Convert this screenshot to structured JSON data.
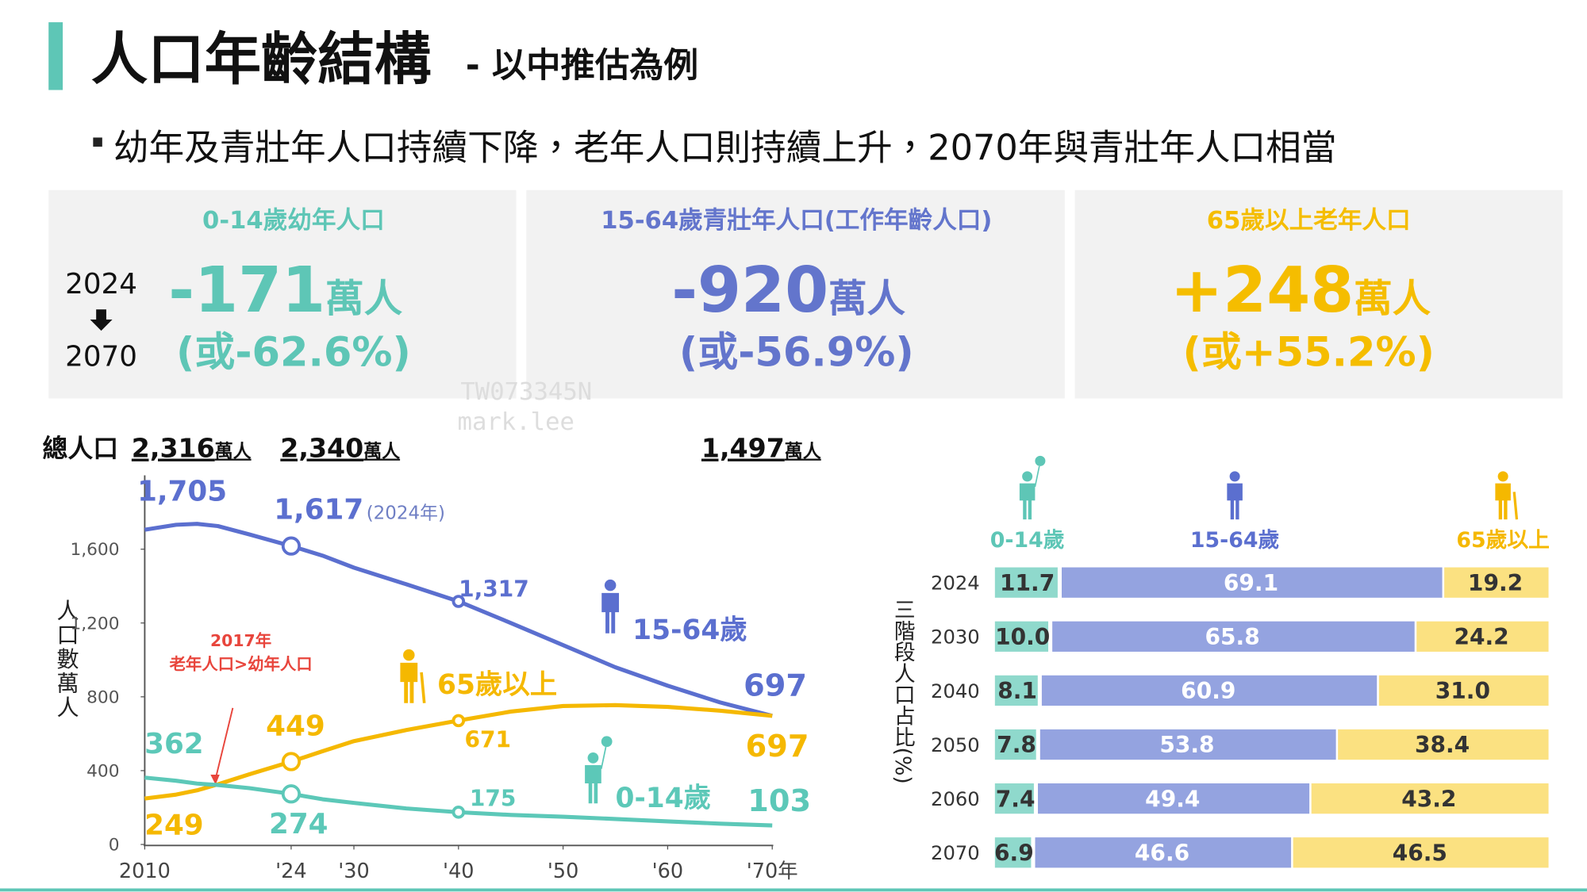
{
  "header": {
    "title": "人口年齡結構",
    "subtitle": "- 以中推估為例"
  },
  "bullet": "幼年及青壯年人口持續下降，老年人口則持續上升，2070年與青壯年人口相當",
  "period": {
    "from": "2024",
    "to": "2070"
  },
  "cards": [
    {
      "title": "0-14歲幼年人口",
      "value": "-171",
      "unit": "萬人",
      "change": "(或-62.6%)",
      "color": "#5ec6b6"
    },
    {
      "title": "15-64歲青壯年人口(工作年齡人口)",
      "value": "-920",
      "unit": "萬人",
      "change": "(或-56.9%)",
      "color": "#6375cc"
    },
    {
      "title": "65歲以上老年人口",
      "value": "+248",
      "unit": "萬人",
      "change": "(或+55.2%)",
      "color": "#f5bd00"
    }
  ],
  "watermark": [
    "TW073345N",
    "mark.lee"
  ],
  "chart_data": [
    {
      "type": "line",
      "ylabel": "人口數萬人",
      "totals": {
        "label": "總人口",
        "items": [
          {
            "text": "2,316",
            "unit": "萬人"
          },
          {
            "text": "2,340",
            "unit": "萬人"
          },
          {
            "text": "1,497",
            "unit": "萬人"
          }
        ]
      },
      "annotation": [
        "2017年",
        "老年人口>幼年人口"
      ],
      "point_note": "(2024年)",
      "x": [
        2010,
        2013,
        2015,
        2017,
        2020,
        2024,
        2027,
        2030,
        2035,
        2040,
        2045,
        2050,
        2055,
        2060,
        2065,
        2070
      ],
      "xlim": [
        2010,
        2070
      ],
      "xticks": [
        2010,
        {
          "value": 2024,
          "label": "'24"
        },
        {
          "value": 2030,
          "label": "'30"
        },
        {
          "value": 2040,
          "label": "'40"
        },
        {
          "value": 2050,
          "label": "'50"
        },
        {
          "value": 2060,
          "label": "'60"
        },
        {
          "value": 2070,
          "label": "'70年"
        }
      ],
      "ylim": [
        0,
        2000
      ],
      "yticks": [
        0,
        400,
        800,
        {
          "value": 1200,
          "label": "1,200"
        },
        {
          "value": 1600,
          "label": "1,600"
        }
      ],
      "series": [
        {
          "name": "15-64歲",
          "color": "#5b6fcf",
          "values": [
            1705,
            1732,
            1737,
            1725,
            1680,
            1617,
            1565,
            1500,
            1410,
            1317,
            1200,
            1080,
            960,
            860,
            770,
            697
          ],
          "value_labels": [
            "1,705",
            null,
            null,
            null,
            null,
            "1,617",
            null,
            null,
            null,
            "1,317",
            null,
            null,
            null,
            null,
            null,
            "697"
          ]
        },
        {
          "name": "65歲以上",
          "color": "#f5b800",
          "values": [
            249,
            270,
            293,
            326,
            380,
            449,
            505,
            560,
            620,
            671,
            720,
            750,
            755,
            745,
            725,
            697
          ],
          "value_labels": [
            "249",
            null,
            null,
            null,
            null,
            "449",
            null,
            null,
            null,
            "671",
            null,
            null,
            null,
            null,
            null,
            "697"
          ]
        },
        {
          "name": "0-14歲",
          "color": "#5cc8b8",
          "values": [
            362,
            345,
            330,
            322,
            305,
            274,
            245,
            225,
            195,
            175,
            160,
            150,
            138,
            125,
            113,
            103
          ],
          "value_labels": [
            "362",
            null,
            null,
            null,
            null,
            "274",
            null,
            null,
            null,
            "175",
            null,
            null,
            null,
            null,
            null,
            "103"
          ]
        }
      ]
    },
    {
      "type": "hbar-stacked",
      "ylabel": "三階段人口占比(%)",
      "categories": [
        "2024",
        "2030",
        "2040",
        "2050",
        "2060",
        "2070"
      ],
      "xlim": [
        0,
        100
      ],
      "series": [
        {
          "name": "0-14歲",
          "color": "#8fd9cc",
          "label_color": "#5ec6b6",
          "values": [
            11.7,
            10.0,
            8.1,
            7.8,
            7.4,
            6.9
          ],
          "value_labels": [
            "11.7",
            "10.0",
            "8.1",
            "7.8",
            "7.4",
            "6.9"
          ]
        },
        {
          "name": "15-64歲",
          "color": "#94a3e0",
          "label_color": "#5b6fcf",
          "values": [
            69.1,
            65.8,
            60.9,
            53.8,
            49.4,
            46.6
          ],
          "value_labels": [
            "69.1",
            "65.8",
            "60.9",
            "53.8",
            "49.4",
            "46.6"
          ]
        },
        {
          "name": "65歲以上",
          "color": "#fbe181",
          "label_color": "#f5b800",
          "values": [
            19.2,
            24.2,
            31.0,
            38.4,
            43.2,
            46.5
          ],
          "value_labels": [
            "19.2",
            "24.2",
            "31.0",
            "38.4",
            "43.2",
            "46.5"
          ]
        }
      ]
    }
  ]
}
